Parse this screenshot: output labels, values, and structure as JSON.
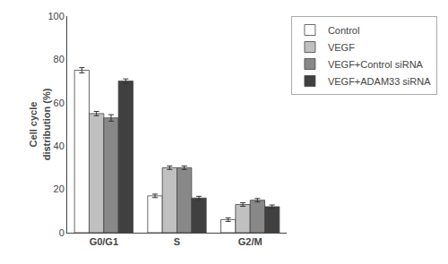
{
  "chart_data": {
    "type": "bar",
    "categories": [
      "G0/G1",
      "S",
      "G2/M"
    ],
    "series": [
      {
        "name": "Control",
        "color": "#ffffff",
        "values": [
          75,
          17,
          6
        ],
        "errors": [
          1.2,
          0.8,
          0.8
        ]
      },
      {
        "name": "VEGF",
        "color": "#c0c0c0",
        "values": [
          55,
          30,
          13
        ],
        "errors": [
          1.0,
          0.8,
          0.8
        ]
      },
      {
        "name": "VEGF+Control siRNA",
        "color": "#888888",
        "values": [
          53,
          30,
          15
        ],
        "errors": [
          1.5,
          0.8,
          0.8
        ]
      },
      {
        "name": "VEGF+ADAM33 siRNA",
        "color": "#404040",
        "values": [
          70,
          16,
          12
        ],
        "errors": [
          1.0,
          0.8,
          0.8
        ]
      }
    ],
    "ylabel": "Cell cycle\ndistribution (%)",
    "ylim": [
      0,
      100
    ],
    "yticks": [
      0,
      20,
      40,
      60,
      80,
      100
    ],
    "grid": false,
    "legend": "right"
  }
}
